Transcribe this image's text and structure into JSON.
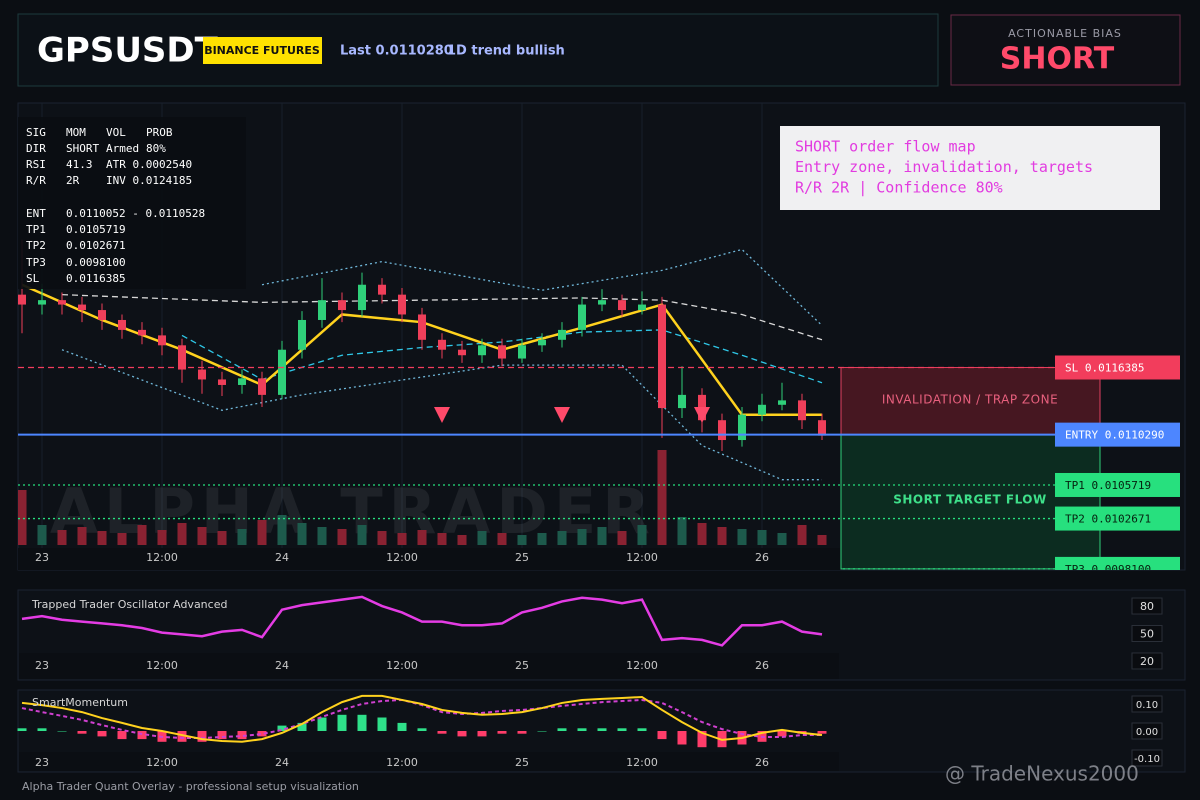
{
  "header": {
    "symbol": "GPSUSDT",
    "badge": "BINANCE FUTURES",
    "last": "Last 0.0110280",
    "trend": "1D trend bullish"
  },
  "bias": {
    "label": "ACTIONABLE BIAS",
    "value": "SHORT"
  },
  "stats_panel": {
    "rows": [
      [
        "SIG",
        "MOM",
        "VOL",
        "PROB"
      ],
      [
        "DIR",
        "SHORT",
        "Armed",
        "80%"
      ],
      [
        "RSI",
        "41.3",
        "ATR 0.0002540"
      ],
      [
        "R/R",
        "2R",
        "INV 0.0124185"
      ],
      [
        "ENT",
        "0.0110052 - 0.0110528"
      ],
      [
        "TP1",
        "0.0105719"
      ],
      [
        "TP2",
        "0.0102671"
      ],
      [
        "TP3",
        "0.0098100"
      ],
      [
        "SL",
        "0.0116385"
      ]
    ]
  },
  "note": {
    "lines": [
      "SHORT order flow map",
      "Entry zone, invalidation, targets",
      "R/R 2R | Confidence 80%"
    ]
  },
  "price_chart": {
    "watermark": "ALPHA TRADER",
    "ylim": [
      0.0098,
      0.01404
    ],
    "time_labels": [
      "23",
      "12:00",
      "24",
      "12:00",
      "25",
      "12:00",
      "26"
    ],
    "up_color": "#2fd07a",
    "down_color": "#ef3f5a",
    "open": [
      0.0123,
      0.01221,
      0.01225,
      0.01221,
      0.01216,
      0.01207,
      0.01198,
      0.01193,
      0.01184,
      0.01162,
      0.01153,
      0.01148,
      0.01154,
      0.01139,
      0.0118,
      0.01207,
      0.01225,
      0.01216,
      0.01239,
      0.0123,
      0.01212,
      0.01189,
      0.0118,
      0.01175,
      0.01184,
      0.01172,
      0.01184,
      0.01189,
      0.01198,
      0.01221,
      0.01225,
      0.01216,
      0.01221,
      0.01127,
      0.01139,
      0.01116,
      0.01098,
      0.01121,
      0.0113,
      0.01134,
      0.01116
    ],
    "high": [
      0.0128,
      0.0124,
      0.01232,
      0.01228,
      0.01222,
      0.01212,
      0.01205,
      0.012,
      0.0119,
      0.0117,
      0.0116,
      0.01162,
      0.0116,
      0.01188,
      0.01215,
      0.01245,
      0.01232,
      0.0125,
      0.01245,
      0.01236,
      0.01218,
      0.01195,
      0.01188,
      0.0119,
      0.0119,
      0.0119,
      0.01195,
      0.01205,
      0.01228,
      0.01235,
      0.0123,
      0.01233,
      0.01228,
      0.01165,
      0.01145,
      0.01122,
      0.01128,
      0.0114,
      0.0115,
      0.0114,
      0.01122
    ],
    "low": [
      0.01195,
      0.01212,
      0.01212,
      0.01205,
      0.01198,
      0.0119,
      0.01185,
      0.01175,
      0.0115,
      0.0114,
      0.01138,
      0.0114,
      0.01128,
      0.01135,
      0.01172,
      0.012,
      0.01205,
      0.0121,
      0.01222,
      0.01205,
      0.0118,
      0.01172,
      0.01168,
      0.01168,
      0.01165,
      0.01168,
      0.01178,
      0.01182,
      0.01192,
      0.01215,
      0.0121,
      0.01212,
      0.011,
      0.01118,
      0.01105,
      0.01088,
      0.01092,
      0.01115,
      0.01125,
      0.01108,
      0.01098
    ],
    "close": [
      0.01221,
      0.01225,
      0.01221,
      0.01216,
      0.01207,
      0.01198,
      0.01193,
      0.01184,
      0.01162,
      0.01153,
      0.01148,
      0.01154,
      0.01139,
      0.0118,
      0.01207,
      0.01225,
      0.01216,
      0.01239,
      0.0123,
      0.01212,
      0.01189,
      0.0118,
      0.01175,
      0.01184,
      0.01172,
      0.01184,
      0.01189,
      0.01198,
      0.01221,
      0.01225,
      0.01216,
      0.01221,
      0.01127,
      0.01139,
      0.01116,
      0.01098,
      0.01121,
      0.0113,
      0.01134,
      0.01116,
      0.01102
    ],
    "volume": [
      55,
      20,
      15,
      18,
      14,
      12,
      20,
      15,
      22,
      18,
      14,
      16,
      25,
      30,
      22,
      18,
      16,
      20,
      14,
      12,
      15,
      12,
      10,
      14,
      12,
      10,
      12,
      14,
      16,
      18,
      14,
      20,
      95,
      28,
      22,
      18,
      16,
      15,
      12,
      20,
      10
    ],
    "vlim": [
      0,
      100
    ],
    "overlays": [
      {
        "color": "#6fb6d8",
        "style": "dotted",
        "x": [
          12,
          18,
          26,
          32,
          36,
          40
        ],
        "values": [
          0.01239,
          0.0126,
          0.01234,
          0.01252,
          0.01271,
          0.01202
        ]
      },
      {
        "color": "#6fb6d8",
        "style": "dotted",
        "x": [
          2,
          10,
          14,
          24,
          30,
          34,
          38,
          40
        ],
        "values": [
          0.0118,
          0.01125,
          0.01139,
          0.01166,
          0.01166,
          0.01093,
          0.01062,
          0.01062
        ]
      },
      {
        "color": "#d8d8d8",
        "style": "dashed",
        "x": [
          2,
          12,
          20,
          28,
          32,
          36,
          40
        ],
        "values": [
          0.0123,
          0.01223,
          0.01225,
          0.01227,
          0.01225,
          0.01212,
          0.01189
        ]
      },
      {
        "color": "#2fc8e8",
        "style": "dashed",
        "x": [
          8,
          12,
          16,
          20,
          24,
          28,
          32,
          36,
          40
        ],
        "values": [
          0.01193,
          0.01153,
          0.01175,
          0.01182,
          0.01187,
          0.01196,
          0.01198,
          0.01175,
          0.0115
        ]
      },
      {
        "color": "#ffd21e",
        "style": "solid",
        "x": [
          0,
          4,
          8,
          12,
          16,
          20,
          24,
          28,
          32,
          36,
          40
        ],
        "values": [
          0.01239,
          0.01207,
          0.0118,
          0.01148,
          0.01212,
          0.01205,
          0.0118,
          0.012,
          0.01221,
          0.01121,
          0.01121
        ]
      }
    ],
    "levels": [
      {
        "value": 0.0116385,
        "label": "SL 0.0116385",
        "color": "#f23d5c",
        "style": "dashed"
      },
      {
        "value": 0.011029,
        "label": "ENTRY 0.0110290",
        "color": "#4d86ff",
        "style": "solid"
      },
      {
        "value": 0.0105719,
        "label": "TP1 0.0105719",
        "color": "#27e07e",
        "style": "dotted"
      },
      {
        "value": 0.0102671,
        "label": "TP2 0.0102671",
        "color": "#27e07e",
        "style": "dotted"
      },
      {
        "value": 0.00981,
        "label": "TP3 0.0098100",
        "color": "#27e07e",
        "style": "dotted"
      }
    ],
    "zones": [
      "INVALIDATION / TRAP ZONE",
      "SHORT TARGET FLOW"
    ],
    "sell_signals": [
      21,
      27,
      34
    ]
  },
  "oscillator": {
    "title": "Trapped Trader Oscillator Advanced",
    "ylim": [
      0,
      100
    ],
    "yticks": [
      80,
      50,
      20
    ],
    "color": "#e43ce4",
    "values": [
      66,
      69,
      65,
      63,
      61,
      59,
      56,
      51,
      49,
      47,
      52,
      54,
      46,
      76,
      81,
      84,
      87,
      90,
      80,
      73,
      63,
      63,
      59,
      59,
      61,
      73,
      78,
      85,
      89,
      87,
      83,
      87,
      43,
      45,
      43,
      37,
      59,
      59,
      63,
      52,
      49
    ]
  },
  "momentum": {
    "title": "SmartMomentum",
    "ylim": [
      -0.15,
      0.15
    ],
    "yticks": [
      {
        "value": 0.1,
        "label": "0.10"
      },
      {
        "value": 0,
        "label": "0.00"
      },
      {
        "value": -0.1,
        "label": "-0.10"
      }
    ],
    "up_color": "#2fe08a",
    "down_color": "#ff3d6a",
    "line_color": "#ffd21e",
    "signal_color": "#d040d0",
    "histogram": [
      0.01,
      0.01,
      0.0,
      -0.01,
      -0.02,
      -0.03,
      -0.03,
      -0.04,
      -0.04,
      -0.04,
      -0.03,
      -0.03,
      -0.02,
      0.02,
      0.03,
      0.05,
      0.06,
      0.06,
      0.05,
      0.03,
      0.01,
      -0.01,
      -0.02,
      -0.02,
      -0.01,
      -0.01,
      0.0,
      0.01,
      0.01,
      0.01,
      0.01,
      0.01,
      -0.03,
      -0.05,
      -0.06,
      -0.06,
      -0.05,
      -0.04,
      -0.02,
      -0.01,
      -0.01
    ],
    "line": [
      0.104,
      0.096,
      0.085,
      0.07,
      0.048,
      0.03,
      0.011,
      0,
      -0.015,
      -0.03,
      -0.037,
      -0.04,
      -0.03,
      -0.007,
      0.026,
      0.07,
      0.107,
      0.13,
      0.13,
      0.115,
      0.1,
      0.078,
      0.067,
      0.06,
      0.063,
      0.07,
      0.085,
      0.104,
      0.115,
      0.119,
      0.122,
      0.126,
      0.078,
      0.033,
      -0.007,
      -0.033,
      -0.026,
      -0.007,
      0.004,
      -0.007,
      -0.015
    ],
    "signal": [
      0.085,
      0.07,
      0.056,
      0.041,
      0.022,
      0.004,
      -0.011,
      -0.022,
      -0.026,
      -0.026,
      -0.022,
      -0.019,
      -0.011,
      0.004,
      0.026,
      0.052,
      0.078,
      0.1,
      0.111,
      0.115,
      0.096,
      0.07,
      0.063,
      0.067,
      0.074,
      0.078,
      0.085,
      0.093,
      0.1,
      0.107,
      0.111,
      0.115,
      0.104,
      0.07,
      0.033,
      0.007,
      -0.011,
      -0.022,
      -0.022,
      -0.015,
      -0.015
    ]
  },
  "footer": {
    "caption": "Alpha Trader Quant Overlay - professional setup visualization",
    "watermark": "@ TradeNexus2000"
  }
}
